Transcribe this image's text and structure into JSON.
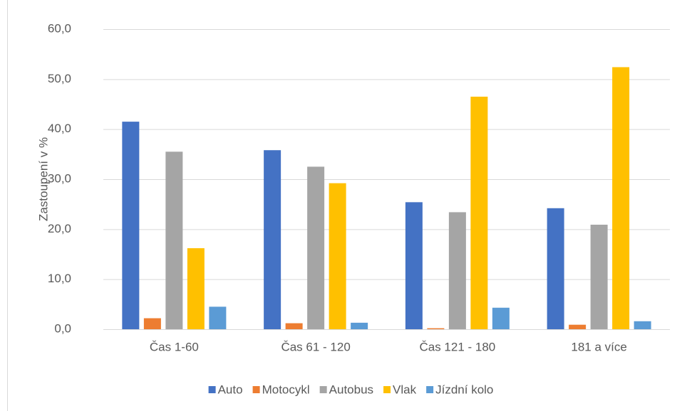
{
  "chart_data": {
    "type": "bar",
    "y_axis_label": "Zastoupení v %",
    "categories": [
      "Čas 1-60",
      "Čas 61 - 120",
      "Čas 121 - 180",
      "181 a více"
    ],
    "series": [
      {
        "name": "Auto",
        "color": "#4472c4",
        "values": [
          41.5,
          35.8,
          25.4,
          24.2
        ]
      },
      {
        "name": "Motocykl",
        "color": "#ed7d31",
        "values": [
          2.2,
          1.2,
          0.2,
          0.9
        ]
      },
      {
        "name": "Autobus",
        "color": "#a5a5a5",
        "values": [
          35.5,
          32.5,
          23.4,
          20.9
        ]
      },
      {
        "name": "Vlak",
        "color": "#ffc000",
        "values": [
          16.2,
          29.2,
          46.5,
          52.4
        ]
      },
      {
        "name": "Jízdní kolo",
        "color": "#5b9bd5",
        "values": [
          4.5,
          1.3,
          4.3,
          1.6
        ]
      }
    ],
    "ylim": [
      0,
      60
    ],
    "yticks": [
      {
        "value": 0,
        "label": "0,0"
      },
      {
        "value": 10,
        "label": "10,0"
      },
      {
        "value": 20,
        "label": "20,0"
      },
      {
        "value": 30,
        "label": "30,0"
      },
      {
        "value": 40,
        "label": "40,0"
      },
      {
        "value": 50,
        "label": "50,0"
      },
      {
        "value": 60,
        "label": "60,0"
      }
    ],
    "grid": true,
    "legend": "bottom"
  }
}
